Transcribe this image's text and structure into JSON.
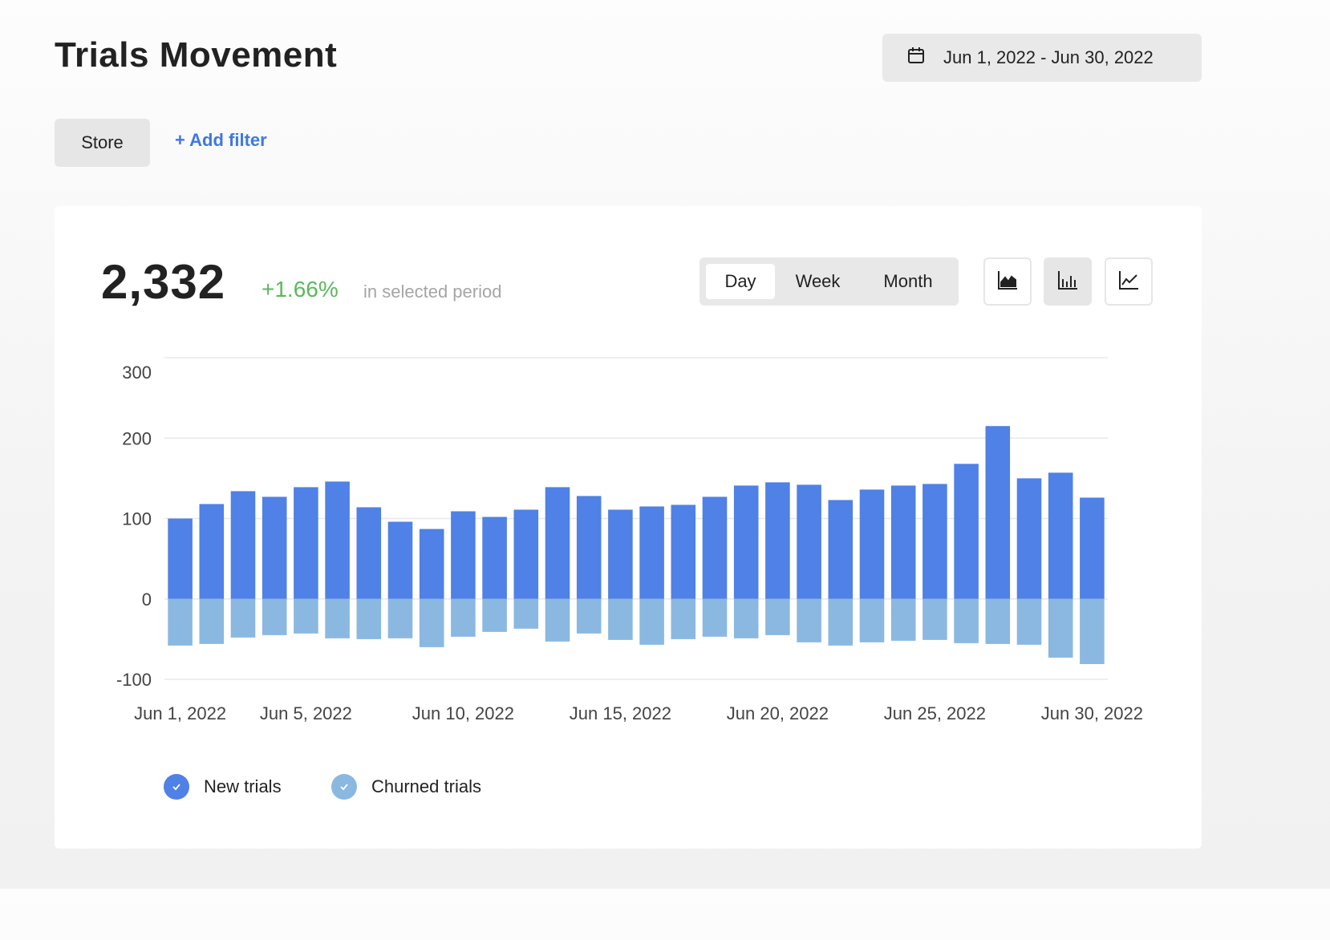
{
  "header": {
    "title": "Trials Movement",
    "date_range": "Jun 1, 2022 - Jun 30, 2022",
    "calendar_icon": "calendar-icon"
  },
  "filters": {
    "store_label": "Store",
    "add_filter_label": "+ Add filter"
  },
  "summary": {
    "total": "2,332",
    "change": "+1.66%",
    "period_text": "in selected period"
  },
  "granularity": {
    "options": [
      "Day",
      "Week",
      "Month"
    ],
    "selected": "Day"
  },
  "chart_types": {
    "icons": [
      "area-chart-icon",
      "bar-chart-icon",
      "line-chart-icon"
    ],
    "selected": "bar-chart-icon"
  },
  "colors": {
    "new_trials": "#4f81e6",
    "churned_trials": "#8ab8e0",
    "positive_change": "#5cb85c",
    "link": "#3f78e0"
  },
  "chart_data": {
    "type": "bar",
    "stacked": true,
    "categories": [
      "Jun 1, 2022",
      "Jun 2, 2022",
      "Jun 3, 2022",
      "Jun 4, 2022",
      "Jun 5, 2022",
      "Jun 6, 2022",
      "Jun 7, 2022",
      "Jun 8, 2022",
      "Jun 9, 2022",
      "Jun 10, 2022",
      "Jun 11, 2022",
      "Jun 12, 2022",
      "Jun 13, 2022",
      "Jun 14, 2022",
      "Jun 15, 2022",
      "Jun 16, 2022",
      "Jun 17, 2022",
      "Jun 18, 2022",
      "Jun 19, 2022",
      "Jun 20, 2022",
      "Jun 21, 2022",
      "Jun 22, 2022",
      "Jun 23, 2022",
      "Jun 24, 2022",
      "Jun 25, 2022",
      "Jun 26, 2022",
      "Jun 27, 2022",
      "Jun 28, 2022",
      "Jun 29, 2022",
      "Jun 30, 2022"
    ],
    "tick_labels": [
      "Jun 1, 2022",
      "Jun 5, 2022",
      "Jun 10, 2022",
      "Jun 15, 2022",
      "Jun 20, 2022",
      "Jun 25, 2022",
      "Jun 30, 2022"
    ],
    "series": [
      {
        "name": "New trials",
        "values": [
          100,
          118,
          134,
          127,
          139,
          146,
          114,
          96,
          87,
          109,
          102,
          111,
          139,
          128,
          111,
          115,
          117,
          127,
          141,
          145,
          142,
          123,
          136,
          141,
          143,
          168,
          215,
          150,
          157,
          126
        ]
      },
      {
        "name": "Churned trials",
        "values": [
          -58,
          -56,
          -48,
          -45,
          -43,
          -49,
          -50,
          -49,
          -60,
          -47,
          -41,
          -37,
          -53,
          -43,
          -51,
          -57,
          -50,
          -47,
          -49,
          -45,
          -54,
          -58,
          -54,
          -52,
          -51,
          -55,
          -56,
          -57,
          -73,
          -81
        ]
      }
    ],
    "ylim": [
      -100,
      300
    ],
    "yticks": [
      300,
      200,
      100,
      0,
      -100
    ],
    "grid": true,
    "legend_position": "bottom-left"
  }
}
